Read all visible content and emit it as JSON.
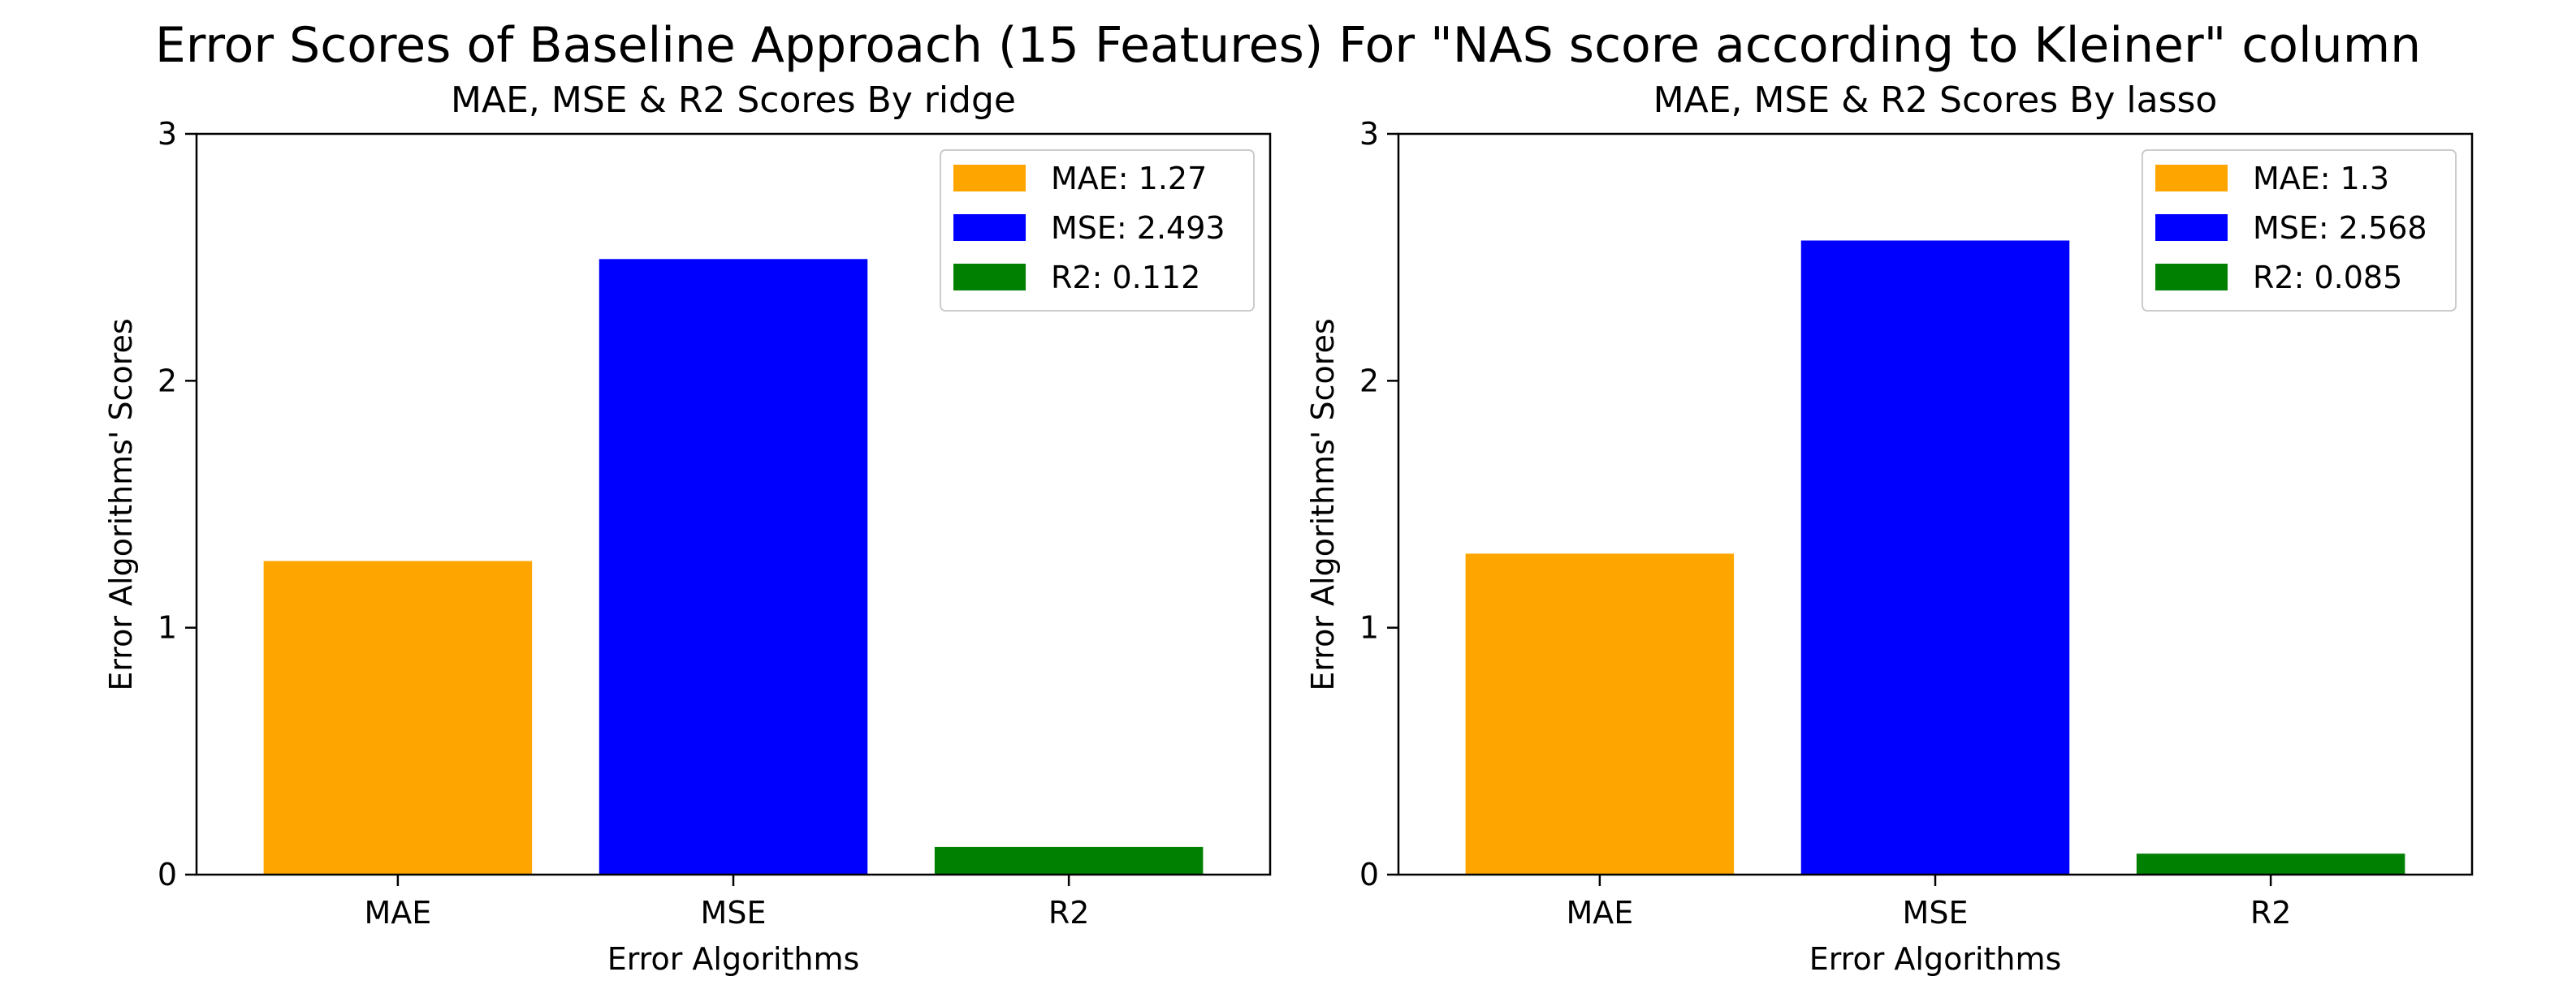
{
  "figure": {
    "suptitle": "Error Scores of Baseline Approach (15 Features) For \"NAS score according to Kleiner\" column"
  },
  "chart_data": [
    {
      "type": "bar",
      "title": "MAE, MSE & R2 Scores By ridge",
      "xlabel": "Error Algorithms",
      "ylabel": "Error Algorithms' Scores",
      "categories": [
        "MAE",
        "MSE",
        "R2"
      ],
      "values": [
        1.27,
        2.493,
        0.112
      ],
      "colors": [
        "#ffa500",
        "#0000ff",
        "#008000"
      ],
      "ylim": [
        0,
        3
      ],
      "yticks": [
        "0",
        "1",
        "2",
        "3"
      ],
      "legend": {
        "position": "top-right",
        "entries": [
          "MAE: 1.27",
          "MSE: 2.493",
          "R2: 0.112"
        ]
      },
      "grid": false
    },
    {
      "type": "bar",
      "title": "MAE, MSE & R2 Scores By lasso",
      "xlabel": "Error Algorithms",
      "ylabel": "Error Algorithms' Scores",
      "categories": [
        "MAE",
        "MSE",
        "R2"
      ],
      "values": [
        1.3,
        2.568,
        0.085
      ],
      "colors": [
        "#ffa500",
        "#0000ff",
        "#008000"
      ],
      "ylim": [
        0,
        3
      ],
      "yticks": [
        "0",
        "1",
        "2",
        "3"
      ],
      "legend": {
        "position": "top-right",
        "entries": [
          "MAE: 1.3",
          "MSE: 2.568",
          "R2: 0.085"
        ]
      },
      "grid": false
    }
  ]
}
